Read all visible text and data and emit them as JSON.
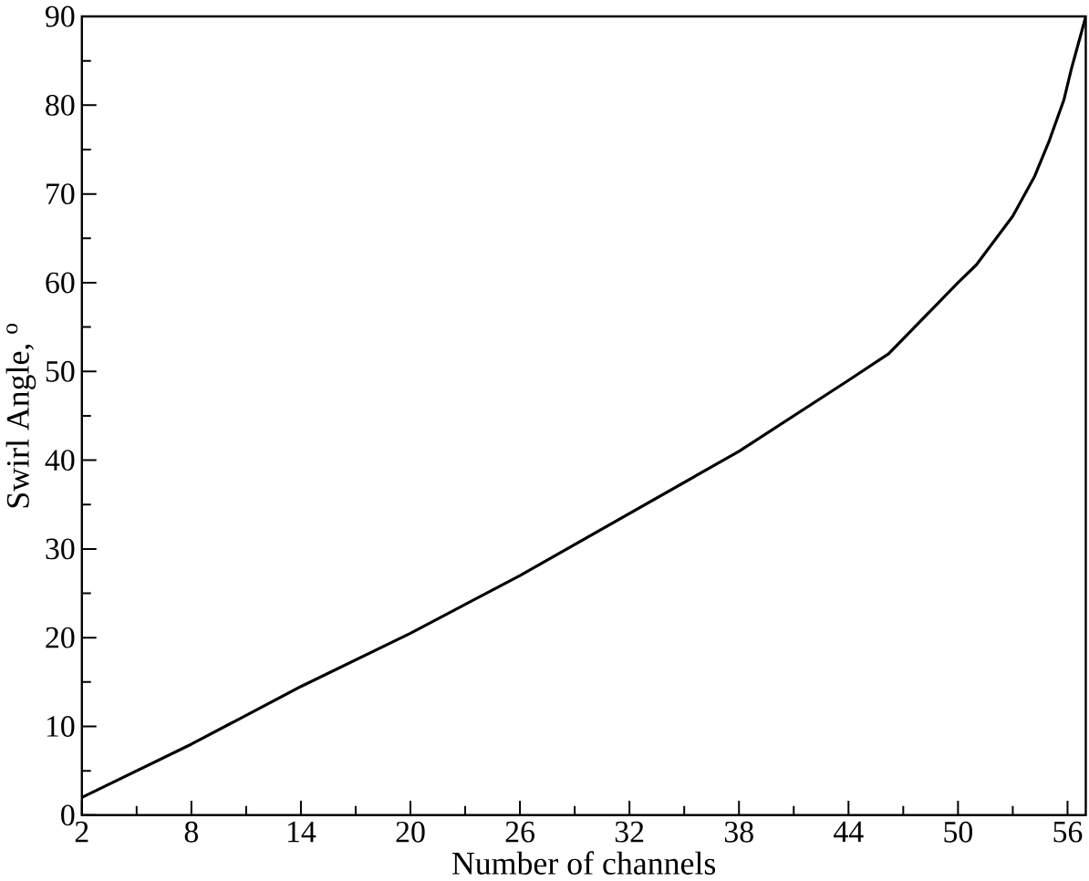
{
  "chart_data": {
    "type": "line",
    "xlabel": "Number of channels",
    "ylabel": "Swirl Angle, $^{o}$",
    "xlim": [
      2,
      57
    ],
    "xticks": [
      2,
      8,
      14,
      20,
      26,
      32,
      38,
      44,
      50,
      56
    ],
    "ylim": [
      0,
      90
    ],
    "yticks": [
      0,
      10,
      20,
      30,
      40,
      50,
      60,
      70,
      80,
      90
    ],
    "marker": "none",
    "line_style": "solid",
    "series": [
      {
        "color": "#000000",
        "x": [
          2,
          8,
          14,
          20,
          26,
          32,
          38,
          44,
          46.2,
          50,
          51,
          53,
          54.2,
          55,
          55.8,
          56.2,
          56.6,
          57
        ],
        "values": [
          2,
          8,
          14.5,
          20.5,
          27,
          34,
          41,
          49,
          52,
          60,
          62,
          67.5,
          72,
          76,
          80.6,
          84,
          87,
          90
        ]
      }
    ]
  }
}
